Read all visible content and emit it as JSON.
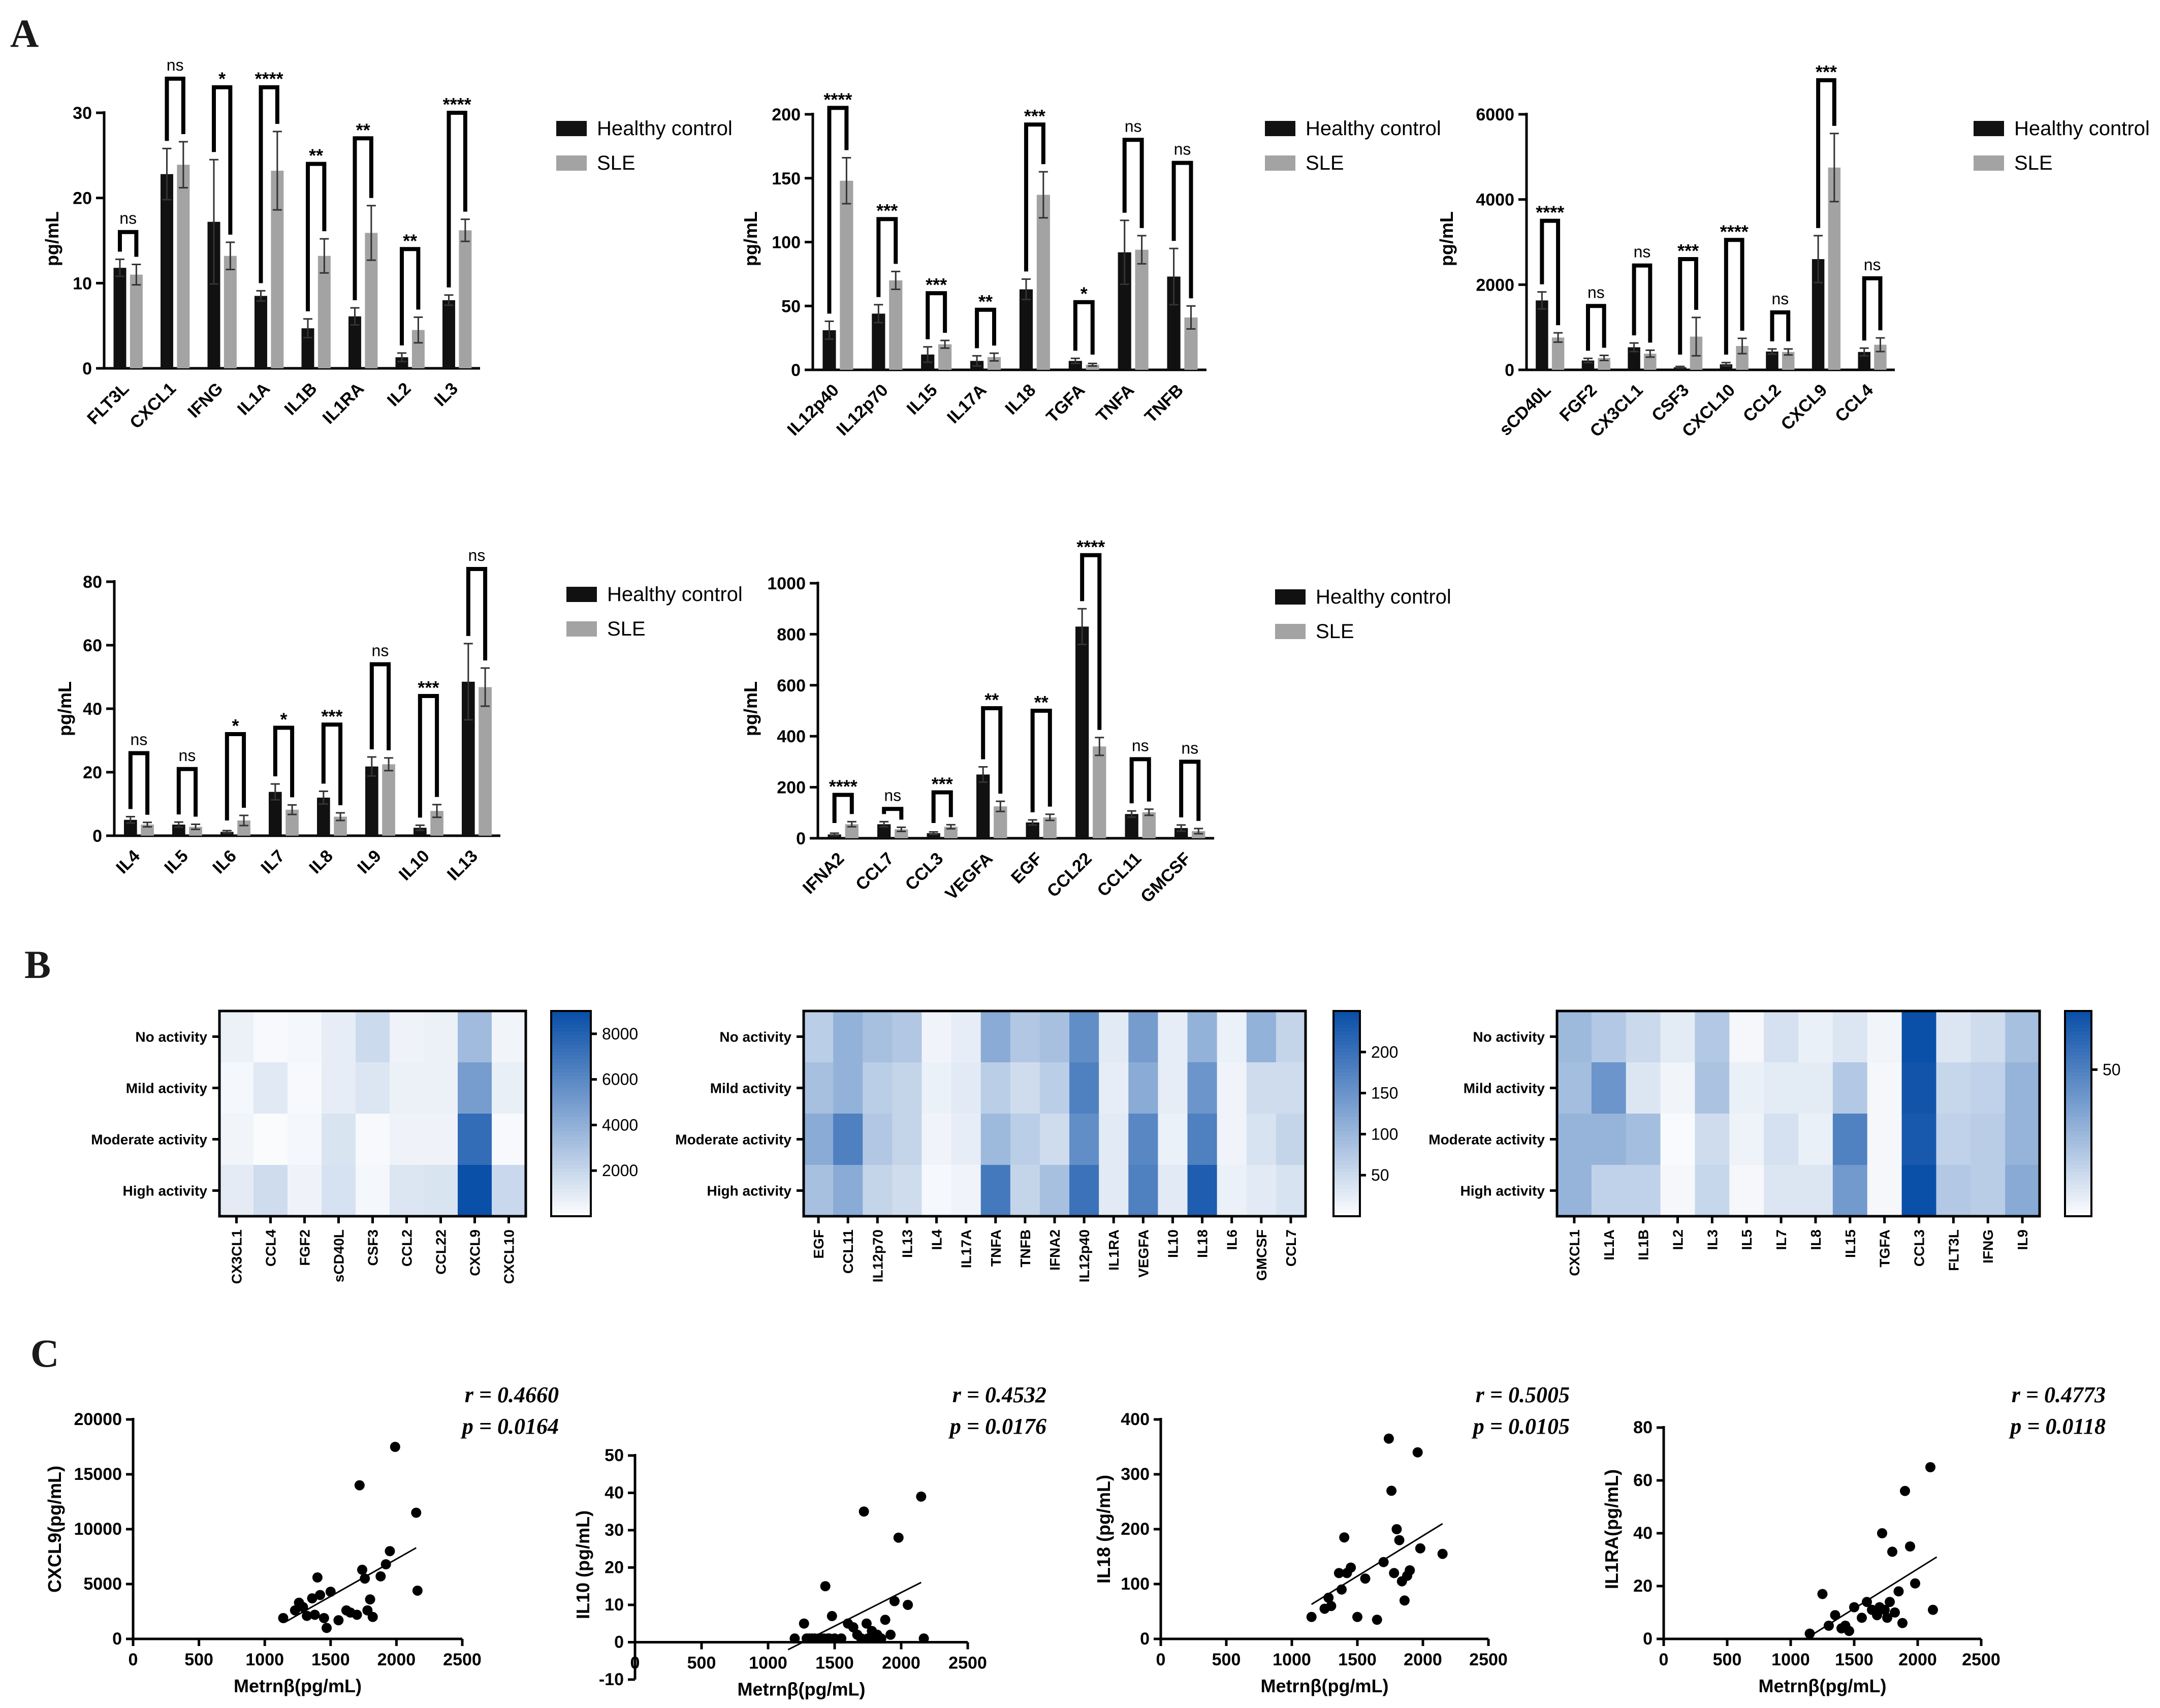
{
  "panels": {
    "A": "A",
    "B": "B",
    "C": "C"
  },
  "colors": {
    "healthy": "#111111",
    "sle": "#a3a3a3",
    "hm_low": "#ffffff",
    "hm_high": "#0a4fa8"
  },
  "chart_data": [
    {
      "type": "bar",
      "panel": "A",
      "ylabel": "pg/mL",
      "ylim": [
        0,
        30
      ],
      "yticks": [
        0,
        10,
        20,
        30
      ],
      "categories": [
        "FLT3L",
        "CXCL1",
        "IFNG",
        "IL1A",
        "IL1B",
        "IL1RA",
        "IL2",
        "IL3"
      ],
      "series": [
        {
          "name": "Healthy control",
          "values": [
            11.8,
            22.8,
            17.2,
            8.5,
            4.7,
            6.1,
            1.3,
            8.0
          ],
          "err": [
            1.0,
            3.0,
            7.3,
            0.6,
            1.1,
            1.0,
            0.5,
            0.6
          ]
        },
        {
          "name": "SLE",
          "values": [
            11.0,
            23.9,
            13.2,
            23.2,
            13.2,
            15.9,
            4.5,
            16.2
          ],
          "err": [
            1.2,
            2.7,
            1.6,
            4.6,
            2.0,
            3.2,
            1.5,
            1.3
          ]
        }
      ],
      "sig": [
        "ns",
        "ns",
        "*",
        "****",
        "**",
        "**",
        "**",
        "****"
      ],
      "brackets": [
        16,
        34,
        33,
        33,
        24,
        27,
        14,
        30
      ]
    },
    {
      "type": "bar",
      "panel": "A",
      "ylabel": "pg/mL",
      "ylim": [
        0,
        200
      ],
      "yticks": [
        0,
        50,
        100,
        150,
        200
      ],
      "categories": [
        "IL12p40",
        "IL12p70",
        "IL15",
        "IL17A",
        "IL18",
        "TGFA",
        "TNFA",
        "TNFB"
      ],
      "series": [
        {
          "name": "Healthy control",
          "values": [
            31,
            44,
            12,
            7,
            63,
            7,
            92,
            73
          ],
          "err": [
            7,
            7,
            6,
            4,
            8,
            2,
            25,
            22
          ]
        },
        {
          "name": "SLE",
          "values": [
            148,
            70,
            20,
            10,
            137,
            4,
            94,
            41
          ],
          "err": [
            18,
            7,
            3,
            3,
            18,
            1,
            11,
            9
          ]
        }
      ],
      "sig": [
        "****",
        "***",
        "***",
        "**",
        "***",
        "*",
        "ns",
        "ns"
      ],
      "brackets": [
        205,
        118,
        60,
        47,
        192,
        53,
        180,
        162
      ]
    },
    {
      "type": "bar",
      "panel": "A",
      "ylabel": "pg/mL",
      "ylim": [
        0,
        6000
      ],
      "yticks": [
        0,
        2000,
        4000,
        6000
      ],
      "categories": [
        "sCD40L",
        "FGF2",
        "CX3CL1",
        "CSF3",
        "CXCL10",
        "CCL2",
        "CXCL9",
        "CCL4"
      ],
      "series": [
        {
          "name": "Healthy control",
          "values": [
            1630,
            220,
            530,
            60,
            130,
            430,
            2600,
            420
          ],
          "err": [
            200,
            50,
            100,
            20,
            40,
            60,
            550,
            90
          ]
        },
        {
          "name": "SLE",
          "values": [
            760,
            280,
            380,
            780,
            560,
            420,
            4750,
            590
          ],
          "err": [
            110,
            60,
            80,
            450,
            180,
            70,
            800,
            160
          ]
        }
      ],
      "sig": [
        "****",
        "ns",
        "ns",
        "***",
        "****",
        "ns",
        "***",
        "ns"
      ],
      "brackets": [
        3500,
        1500,
        2450,
        2600,
        3050,
        1350,
        6800,
        2150
      ]
    },
    {
      "type": "bar",
      "panel": "A",
      "ylabel": "pg/mL",
      "ylim": [
        0,
        80
      ],
      "yticks": [
        0,
        20,
        40,
        60,
        80
      ],
      "categories": [
        "IL4",
        "IL5",
        "IL6",
        "IL7",
        "IL8",
        "IL9",
        "IL10",
        "IL13"
      ],
      "series": [
        {
          "name": "Healthy control",
          "values": [
            5.0,
            3.5,
            1.2,
            13.8,
            12.0,
            21.8,
            2.5,
            48.5
          ],
          "err": [
            1.0,
            0.8,
            0.4,
            2.5,
            2.0,
            3.0,
            0.8,
            12
          ]
        },
        {
          "name": "SLE",
          "values": [
            3.5,
            2.8,
            4.8,
            8.2,
            6.0,
            22.5,
            7.8,
            46.8
          ],
          "err": [
            0.7,
            0.8,
            1.6,
            1.5,
            1.2,
            2.0,
            2.0,
            6
          ]
        }
      ],
      "sig": [
        "ns",
        "ns",
        "*",
        "*",
        "***",
        "ns",
        "***",
        "ns"
      ],
      "brackets": [
        26,
        21,
        32,
        34,
        35,
        54,
        44,
        84
      ]
    },
    {
      "type": "bar",
      "panel": "A",
      "ylabel": "pg/mL",
      "ylim": [
        0,
        1000
      ],
      "yticks": [
        0,
        200,
        400,
        600,
        800,
        1000
      ],
      "categories": [
        "IFNA2",
        "CCL7",
        "CCL3",
        "VEGFA",
        "EGF",
        "CCL22",
        "CCL11",
        "GMCSF"
      ],
      "series": [
        {
          "name": "Healthy control",
          "values": [
            15,
            55,
            20,
            250,
            62,
            830,
            95,
            40
          ],
          "err": [
            5,
            10,
            5,
            30,
            10,
            70,
            12,
            12
          ]
        },
        {
          "name": "SLE",
          "values": [
            55,
            35,
            45,
            125,
            82,
            360,
            102,
            28
          ],
          "err": [
            10,
            8,
            8,
            20,
            12,
            35,
            12,
            10
          ]
        }
      ],
      "sig": [
        "****",
        "ns",
        "***",
        "**",
        "**",
        "****",
        "ns",
        "ns"
      ],
      "brackets": [
        170,
        115,
        180,
        510,
        500,
        1110,
        310,
        300
      ]
    },
    {
      "type": "heatmap",
      "panel": "B",
      "rows": [
        "No activity",
        "Mild activity",
        "Moderate activity",
        "High activity"
      ],
      "columns": [
        "CX3CL1",
        "CCL4",
        "FGF2",
        "sCD40L",
        "CSF3",
        "CCL2",
        "CCL22",
        "CXCL9",
        "CXCL10"
      ],
      "values": [
        [
          700,
          300,
          400,
          900,
          1900,
          600,
          700,
          3500,
          500
        ],
        [
          400,
          1100,
          300,
          900,
          1300,
          700,
          700,
          5000,
          800
        ],
        [
          500,
          200,
          400,
          1400,
          300,
          600,
          600,
          7500,
          300
        ],
        [
          1000,
          1800,
          600,
          1500,
          400,
          1300,
          1400,
          9000,
          2000
        ]
      ],
      "colorbar": {
        "min": 0,
        "max": 9000,
        "ticks": [
          2000,
          4000,
          6000,
          8000
        ]
      }
    },
    {
      "type": "heatmap",
      "panel": "B",
      "rows": [
        "No activity",
        "Mild activity",
        "Moderate activity",
        "High activity"
      ],
      "columns": [
        "EGF",
        "CCL11",
        "IL12p70",
        "IL13",
        "IL4",
        "IL17A",
        "TNFA",
        "TNFB",
        "IFNA2",
        "IL12p40",
        "IL1RA",
        "VEGFA",
        "IL10",
        "IL18",
        "IL6",
        "GMCSF",
        "CCL7"
      ],
      "values": [
        [
          70,
          110,
          90,
          80,
          15,
          25,
          120,
          80,
          90,
          160,
          30,
          140,
          25,
          110,
          20,
          110,
          60
        ],
        [
          90,
          110,
          70,
          60,
          20,
          30,
          70,
          50,
          70,
          180,
          25,
          120,
          25,
          150,
          15,
          50,
          50
        ],
        [
          120,
          180,
          80,
          60,
          15,
          25,
          100,
          70,
          50,
          160,
          30,
          170,
          20,
          180,
          15,
          40,
          60
        ],
        [
          90,
          120,
          60,
          50,
          10,
          15,
          190,
          60,
          90,
          200,
          30,
          180,
          30,
          230,
          20,
          30,
          40
        ]
      ],
      "colorbar": {
        "min": 0,
        "max": 250,
        "ticks": [
          50,
          100,
          150,
          200
        ]
      }
    },
    {
      "type": "heatmap",
      "panel": "B",
      "rows": [
        "No activity",
        "Mild activity",
        "Moderate activity",
        "High activity"
      ],
      "columns": [
        "CXCL1",
        "IL1A",
        "IL1B",
        "IL2",
        "IL3",
        "IL5",
        "IL7",
        "IL8",
        "IL15",
        "TGFA",
        "CCL3",
        "FLT3L",
        "IFNG",
        "IL9"
      ],
      "values": [
        [
          28,
          22,
          15,
          8,
          22,
          3,
          12,
          6,
          10,
          4,
          70,
          10,
          14,
          25
        ],
        [
          26,
          42,
          10,
          4,
          24,
          6,
          8,
          8,
          22,
          3,
          68,
          16,
          18,
          30
        ],
        [
          30,
          30,
          26,
          2,
          14,
          5,
          12,
          6,
          50,
          3,
          66,
          18,
          20,
          30
        ],
        [
          30,
          18,
          18,
          3,
          16,
          3,
          10,
          10,
          40,
          3,
          70,
          22,
          20,
          34
        ]
      ],
      "colorbar": {
        "min": 0,
        "max": 70,
        "ticks": [
          50
        ]
      }
    },
    {
      "type": "scatter",
      "panel": "C",
      "xlabel": "Metrnβ(pg/mL)",
      "ylabel": "CXCL9(pg/mL)",
      "xlim": [
        0,
        2500
      ],
      "ylim": [
        0,
        20000
      ],
      "xticks": [
        0,
        500,
        1000,
        1500,
        2000,
        2500
      ],
      "yticks": [
        0,
        5000,
        10000,
        15000,
        20000
      ],
      "r": "r = 0.4660",
      "p": "p = 0.0164",
      "fit": [
        [
          1150,
          1500
        ],
        [
          2150,
          8300
        ]
      ],
      "points": [
        [
          1140,
          1900
        ],
        [
          1230,
          2600
        ],
        [
          1260,
          3300
        ],
        [
          1290,
          2900
        ],
        [
          1320,
          2100
        ],
        [
          1360,
          3700
        ],
        [
          1380,
          2200
        ],
        [
          1400,
          5600
        ],
        [
          1420,
          4000
        ],
        [
          1450,
          1900
        ],
        [
          1470,
          1000
        ],
        [
          1500,
          4300
        ],
        [
          1560,
          1700
        ],
        [
          1620,
          2600
        ],
        [
          1650,
          2400
        ],
        [
          1700,
          2200
        ],
        [
          1720,
          14000
        ],
        [
          1740,
          6300
        ],
        [
          1760,
          5500
        ],
        [
          1780,
          2600
        ],
        [
          1800,
          3600
        ],
        [
          1820,
          2000
        ],
        [
          1880,
          5700
        ],
        [
          1920,
          6800
        ],
        [
          1950,
          8000
        ],
        [
          1990,
          17500
        ],
        [
          2150,
          11500
        ],
        [
          2160,
          4400
        ]
      ]
    },
    {
      "type": "scatter",
      "panel": "C",
      "xlabel": "Metrnβ(pg/mL)",
      "ylabel": "IL10 (pg/mL)",
      "xlim": [
        0,
        2500
      ],
      "ylim": [
        -10,
        50
      ],
      "xticks": [
        0,
        500,
        1000,
        1500,
        2000,
        2500
      ],
      "yticks": [
        -10,
        0,
        10,
        20,
        30,
        40,
        50
      ],
      "r": "r = 0.4532",
      "p": "p = 0.0176",
      "fit": [
        [
          1150,
          -2
        ],
        [
          2150,
          16
        ]
      ],
      "points": [
        [
          1200,
          1
        ],
        [
          1270,
          5
        ],
        [
          1290,
          1
        ],
        [
          1310,
          1
        ],
        [
          1330,
          1
        ],
        [
          1350,
          1
        ],
        [
          1380,
          1
        ],
        [
          1400,
          1
        ],
        [
          1420,
          1
        ],
        [
          1430,
          15
        ],
        [
          1450,
          1
        ],
        [
          1460,
          1
        ],
        [
          1480,
          7
        ],
        [
          1500,
          1
        ],
        [
          1550,
          1
        ],
        [
          1600,
          5
        ],
        [
          1640,
          4
        ],
        [
          1670,
          2
        ],
        [
          1700,
          1
        ],
        [
          1720,
          35
        ],
        [
          1740,
          5
        ],
        [
          1750,
          1
        ],
        [
          1780,
          3
        ],
        [
          1800,
          1
        ],
        [
          1820,
          2
        ],
        [
          1850,
          1
        ],
        [
          1880,
          6
        ],
        [
          1920,
          2
        ],
        [
          1950,
          11
        ],
        [
          1980,
          28
        ],
        [
          2050,
          10
        ],
        [
          2150,
          39
        ],
        [
          2170,
          1
        ]
      ]
    },
    {
      "type": "scatter",
      "panel": "C",
      "xlabel": "Metrnβ(pg/mL)",
      "ylabel": "IL18 (pg/mL)",
      "xlim": [
        0,
        2500
      ],
      "ylim": [
        0,
        400
      ],
      "xticks": [
        0,
        500,
        1000,
        1500,
        2000,
        2500
      ],
      "yticks": [
        0,
        100,
        200,
        300,
        400
      ],
      "r": "r = 0.5005",
      "p": "p = 0.0105",
      "fit": [
        [
          1150,
          63
        ],
        [
          2150,
          210
        ]
      ],
      "points": [
        [
          1150,
          40
        ],
        [
          1250,
          55
        ],
        [
          1280,
          75
        ],
        [
          1300,
          60
        ],
        [
          1360,
          120
        ],
        [
          1380,
          90
        ],
        [
          1400,
          185
        ],
        [
          1420,
          120
        ],
        [
          1450,
          130
        ],
        [
          1500,
          40
        ],
        [
          1560,
          110
        ],
        [
          1650,
          35
        ],
        [
          1700,
          140
        ],
        [
          1740,
          365
        ],
        [
          1760,
          270
        ],
        [
          1780,
          120
        ],
        [
          1800,
          200
        ],
        [
          1820,
          180
        ],
        [
          1840,
          105
        ],
        [
          1860,
          70
        ],
        [
          1880,
          115
        ],
        [
          1900,
          125
        ],
        [
          1960,
          340
        ],
        [
          1980,
          165
        ],
        [
          2150,
          155
        ]
      ]
    },
    {
      "type": "scatter",
      "panel": "C",
      "xlabel": "Metrnβ(pg/mL)",
      "ylabel": "IL1RA(pg/mL)",
      "xlim": [
        0,
        2500
      ],
      "ylim": [
        0,
        80
      ],
      "xticks": [
        0,
        500,
        1000,
        1500,
        2000,
        2500
      ],
      "yticks": [
        0,
        20,
        40,
        60,
        80
      ],
      "r": "r = 0.4773",
      "p": "p = 0.0118",
      "fit": [
        [
          1150,
          1
        ],
        [
          2150,
          31
        ]
      ],
      "points": [
        [
          1150,
          2
        ],
        [
          1250,
          17
        ],
        [
          1300,
          5
        ],
        [
          1350,
          9
        ],
        [
          1400,
          4
        ],
        [
          1430,
          5
        ],
        [
          1460,
          3
        ],
        [
          1500,
          12
        ],
        [
          1560,
          8
        ],
        [
          1600,
          14
        ],
        [
          1640,
          11
        ],
        [
          1680,
          9
        ],
        [
          1700,
          12
        ],
        [
          1720,
          40
        ],
        [
          1740,
          11
        ],
        [
          1760,
          8
        ],
        [
          1780,
          14
        ],
        [
          1800,
          33
        ],
        [
          1820,
          10
        ],
        [
          1850,
          18
        ],
        [
          1880,
          6
        ],
        [
          1900,
          56
        ],
        [
          1940,
          35
        ],
        [
          1980,
          21
        ],
        [
          2100,
          65
        ],
        [
          2120,
          11
        ]
      ]
    }
  ]
}
